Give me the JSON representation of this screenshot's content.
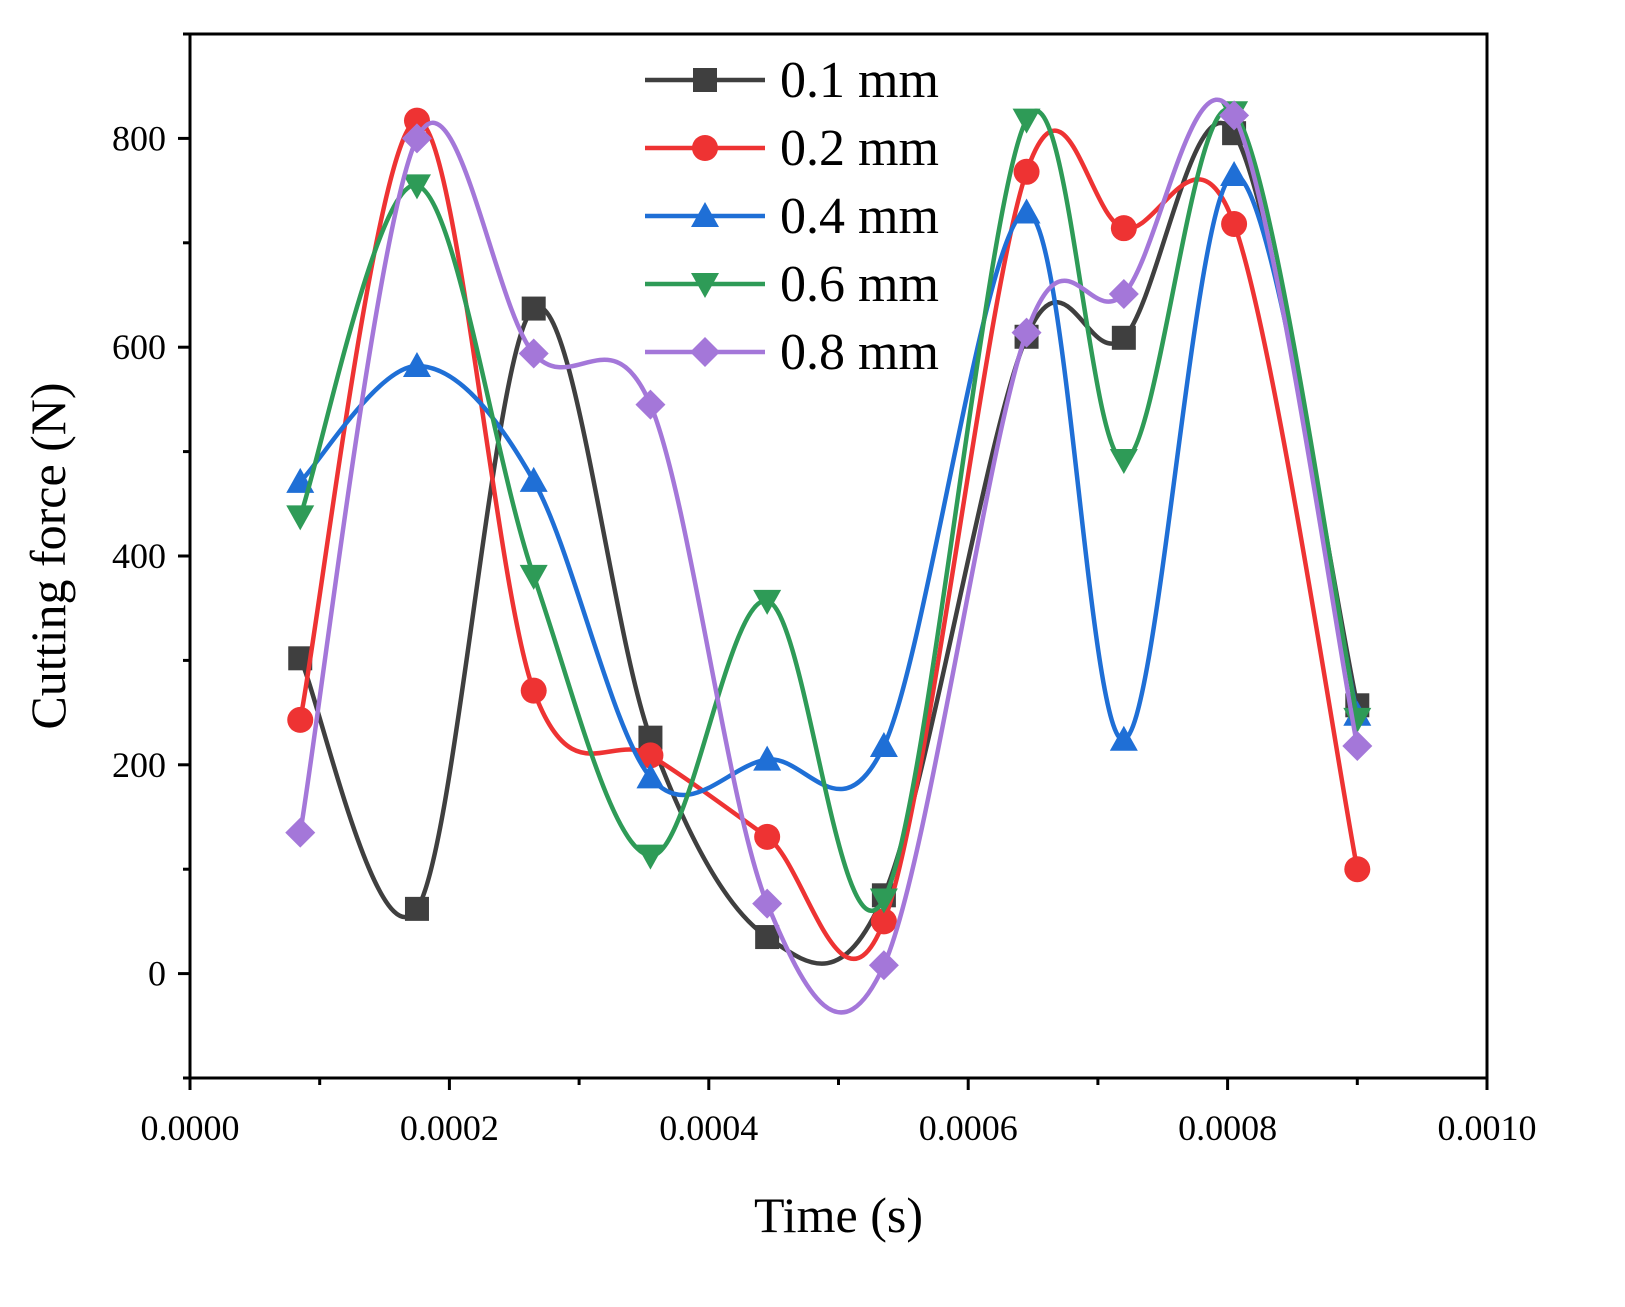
{
  "chart_data": {
    "type": "line",
    "title": "",
    "xlabel": "Time (s)",
    "ylabel": "Cutting force (N)",
    "xlim": [
      0,
      0.001
    ],
    "ylim": [
      -100,
      900
    ],
    "xticks": [
      0,
      0.0002,
      0.0004,
      0.0006,
      0.0008,
      0.001
    ],
    "xtick_labels": [
      "0.0000",
      "0.0002",
      "0.0004",
      "0.0006",
      "0.0008",
      "0.0010"
    ],
    "yticks": [
      0,
      200,
      400,
      600,
      800
    ],
    "ytick_labels": [
      "0",
      "200",
      "400",
      "600",
      "800"
    ],
    "grid": false,
    "legend_position": "top-center",
    "x": [
      8.5e-05,
      0.000175,
      0.000265,
      0.000355,
      0.000445,
      0.000535,
      0.000645,
      0.00072,
      0.000805,
      0.0009
    ],
    "series": [
      {
        "name": "0.1 mm",
        "color": "#3f3f3f",
        "marker": "square",
        "values": [
          302,
          62,
          637,
          226,
          35,
          75,
          610,
          609,
          805,
          257
        ]
      },
      {
        "name": "0.2 mm",
        "color": "#ee3333",
        "marker": "circle",
        "values": [
          243,
          817,
          271,
          209,
          131,
          50,
          768,
          714,
          718,
          100
        ]
      },
      {
        "name": "0.4 mm",
        "color": "#1f6fd6",
        "marker": "triangle-up",
        "values": [
          471,
          582,
          472,
          188,
          205,
          218,
          729,
          224,
          765,
          248
        ]
      },
      {
        "name": "0.6 mm",
        "color": "#2e9b57",
        "marker": "triangle-down",
        "values": [
          438,
          755,
          381,
          113,
          357,
          71,
          818,
          492,
          825,
          244
        ]
      },
      {
        "name": "0.8 mm",
        "color": "#a477d9",
        "marker": "diamond",
        "values": [
          135,
          800,
          594,
          545,
          67,
          8,
          614,
          651,
          822,
          218
        ]
      }
    ]
  }
}
